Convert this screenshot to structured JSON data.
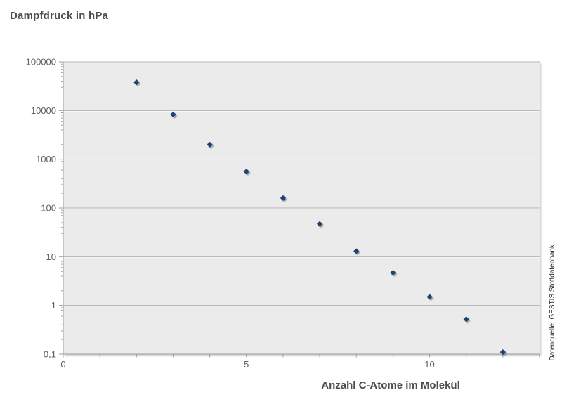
{
  "page": {
    "background": "#ffffff"
  },
  "chart_data": {
    "type": "scatter",
    "title": "Dampfdruck in hPa",
    "xlabel": "Anzahl C-Atome im Molekül",
    "ylabel": "",
    "source": "Datenquelle: GESTIS Stoffdatenbank",
    "x": [
      2,
      3,
      4,
      5,
      6,
      7,
      8,
      9,
      10,
      11,
      12
    ],
    "y": [
      38000,
      8300,
      2000,
      560,
      160,
      47,
      13,
      4.7,
      1.5,
      0.52,
      0.11
    ],
    "y_scale": "log",
    "xlim": [
      0,
      13
    ],
    "ylim": [
      0.1,
      100000
    ],
    "x_tick_step": 1,
    "x_tick_labels": [
      {
        "value": 0,
        "label": "0"
      },
      {
        "value": 5,
        "label": "5"
      },
      {
        "value": 10,
        "label": "10"
      }
    ],
    "y_tick_labels": [
      {
        "value": 100000,
        "label": "100000"
      },
      {
        "value": 10000,
        "label": "10000"
      },
      {
        "value": 1000,
        "label": "1000"
      },
      {
        "value": 100,
        "label": "100"
      },
      {
        "value": 10,
        "label": "10"
      },
      {
        "value": 1,
        "label": "1"
      },
      {
        "value": 0.1,
        "label": "0,1"
      }
    ],
    "grid": "horizontal-major",
    "legend": "none",
    "marker": "diamond",
    "colors": {
      "marker": "#1a4276",
      "plot_bg": "#ebebeb",
      "gridline": "#b3b3b3",
      "gridline_light": "#f8f8f8",
      "axis": "#9e9e9e",
      "tick_label": "#5f5f5f",
      "label": "#4d4d4d"
    }
  }
}
